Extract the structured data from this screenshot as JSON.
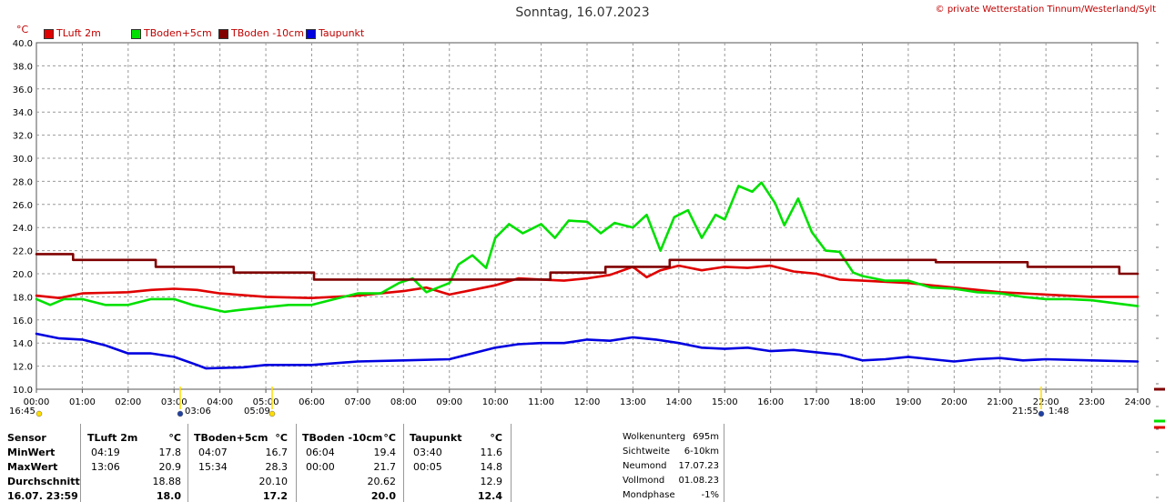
{
  "header": {
    "title": "Sonntag, 16.07.2023",
    "credit": "© private Wetterstation Tinnum/Westerland/Sylt",
    "unit": "°C"
  },
  "chart_data": {
    "type": "line",
    "ylim": [
      10.0,
      40.0
    ],
    "y_ticks": [
      "10.0",
      "12.0",
      "14.0",
      "16.0",
      "18.0",
      "20.0",
      "22.0",
      "24.0",
      "26.0",
      "28.0",
      "30.0",
      "32.0",
      "34.0",
      "36.0",
      "38.0",
      "40.0"
    ],
    "xlim": [
      0,
      24
    ],
    "x_ticks": [
      "00:00",
      "01:00",
      "02:00",
      "03:00",
      "04:00",
      "05:00",
      "06:00",
      "07:00",
      "08:00",
      "09:00",
      "10:00",
      "11:00",
      "12:00",
      "13:00",
      "14:00",
      "15:00",
      "16:00",
      "17:00",
      "18:00",
      "19:00",
      "20:00",
      "21:00",
      "22:00",
      "23:00",
      "24:00"
    ],
    "grid": true,
    "legend_position": "top-left",
    "series": [
      {
        "name": "TLuft 2m",
        "color": "#e00000",
        "x": [
          0,
          0.5,
          1,
          2,
          2.5,
          3,
          3.5,
          4,
          5,
          6,
          7,
          8,
          8.5,
          9,
          9.5,
          10,
          10.5,
          11,
          11.5,
          12,
          12.5,
          13,
          13.3,
          13.6,
          14,
          14.5,
          15,
          15.5,
          16,
          16.5,
          17,
          17.5,
          18,
          19,
          20,
          21,
          22,
          23,
          24
        ],
        "y": [
          18.1,
          17.9,
          18.3,
          18.4,
          18.6,
          18.7,
          18.6,
          18.3,
          18.0,
          17.9,
          18.1,
          18.5,
          18.8,
          18.2,
          18.6,
          19.0,
          19.6,
          19.5,
          19.4,
          19.6,
          19.9,
          20.6,
          19.7,
          20.3,
          20.7,
          20.3,
          20.6,
          20.5,
          20.7,
          20.2,
          20.0,
          19.5,
          19.4,
          19.2,
          18.8,
          18.4,
          18.2,
          18.0,
          18.0
        ]
      },
      {
        "name": "TBoden+5cm",
        "color": "#00e000",
        "x": [
          0,
          0.3,
          0.6,
          1,
          1.5,
          2,
          2.5,
          3,
          3.4,
          4.1,
          4.5,
          5,
          5.5,
          6,
          6.5,
          7,
          7.5,
          7.9,
          8.2,
          8.5,
          9,
          9.2,
          9.5,
          9.8,
          10,
          10.3,
          10.6,
          11,
          11.3,
          11.6,
          12,
          12.3,
          12.6,
          13,
          13.3,
          13.6,
          13.9,
          14.2,
          14.5,
          14.8,
          15,
          15.3,
          15.6,
          15.8,
          16.1,
          16.3,
          16.6,
          16.9,
          17.2,
          17.5,
          17.8,
          18,
          18.5,
          19,
          19.5,
          20,
          20.5,
          21,
          21.5,
          22,
          22.5,
          23,
          24
        ],
        "y": [
          17.8,
          17.3,
          17.8,
          17.8,
          17.3,
          17.3,
          17.8,
          17.8,
          17.3,
          16.7,
          16.9,
          17.1,
          17.3,
          17.3,
          17.8,
          18.3,
          18.3,
          19.2,
          19.6,
          18.4,
          19.2,
          20.8,
          21.6,
          20.5,
          23.1,
          24.3,
          23.5,
          24.3,
          23.1,
          24.6,
          24.5,
          23.5,
          24.4,
          24.0,
          25.1,
          22.0,
          24.9,
          25.5,
          23.1,
          25.1,
          24.7,
          27.6,
          27.1,
          27.9,
          26.1,
          24.2,
          26.5,
          23.6,
          22.0,
          21.9,
          20.1,
          19.8,
          19.4,
          19.4,
          18.8,
          18.7,
          18.4,
          18.3,
          18.0,
          17.8,
          17.8,
          17.7,
          17.2
        ]
      },
      {
        "name": "TBoden -10cm",
        "color": "#800000",
        "x": [
          0,
          0.8,
          0.8,
          2.6,
          2.6,
          4.3,
          4.3,
          6.05,
          6.05,
          11.2,
          11.2,
          12.4,
          12.4,
          13.8,
          13.8,
          19.6,
          19.6,
          21.6,
          21.6,
          23.6,
          23.6,
          24
        ],
        "y": [
          21.7,
          21.7,
          21.2,
          21.2,
          20.6,
          20.6,
          20.1,
          20.1,
          19.5,
          19.5,
          20.1,
          20.1,
          20.6,
          20.6,
          21.2,
          21.2,
          21.0,
          21.0,
          20.6,
          20.6,
          20.0,
          20.0
        ]
      },
      {
        "name": "Taupunkt",
        "color": "#0000e0",
        "x": [
          0,
          0.5,
          1,
          1.5,
          2,
          2.5,
          3,
          3.5,
          3.7,
          4.5,
          5,
          6,
          7,
          8,
          9,
          9.5,
          10,
          10.5,
          11,
          11.5,
          12,
          12.5,
          13,
          13.5,
          14,
          14.5,
          15,
          15.5,
          16,
          16.5,
          17,
          17.5,
          18,
          18.5,
          19,
          19.5,
          20,
          20.5,
          21,
          21.5,
          22,
          23,
          24
        ],
        "y": [
          14.8,
          14.4,
          14.3,
          13.8,
          13.1,
          13.1,
          12.8,
          12.1,
          11.8,
          11.9,
          12.1,
          12.1,
          12.4,
          12.5,
          12.6,
          13.1,
          13.6,
          13.9,
          14.0,
          14.0,
          14.3,
          14.2,
          14.5,
          14.3,
          14.0,
          13.6,
          13.5,
          13.6,
          13.3,
          13.4,
          13.2,
          13.0,
          12.5,
          12.6,
          12.8,
          12.6,
          12.4,
          12.6,
          12.7,
          12.5,
          12.6,
          12.5,
          12.4
        ]
      }
    ]
  },
  "astro_markers": {
    "moonset": "16:45",
    "sunrise": "03:06",
    "moonrise": "05:09",
    "sunset": "21:55",
    "moon_duration": "1:48"
  },
  "stats": {
    "headers": [
      "Sensor",
      "TLuft 2m",
      "°C",
      "TBoden+5cm",
      "°C",
      "TBoden -10cm",
      "°C",
      "Taupunkt",
      "°C"
    ],
    "rows": [
      {
        "label": "MinWert",
        "c1": [
          "04:19",
          "17.8"
        ],
        "c2": [
          "04:07",
          "16.7"
        ],
        "c3": [
          "06:04",
          "19.4"
        ],
        "c4": [
          "03:40",
          "11.6"
        ]
      },
      {
        "label": "MaxWert",
        "c1": [
          "13:06",
          "20.9"
        ],
        "c2": [
          "15:34",
          "28.3"
        ],
        "c3": [
          "00:00",
          "21.7"
        ],
        "c4": [
          "00:05",
          "14.8"
        ]
      },
      {
        "label": "Durchschnitt",
        "c1": [
          "",
          "18.88"
        ],
        "c2": [
          "",
          "20.10"
        ],
        "c3": [
          "",
          "20.62"
        ],
        "c4": [
          "",
          "12.9"
        ]
      },
      {
        "label": "16.07. 23:59",
        "c1": [
          "",
          "18.0"
        ],
        "c2": [
          "",
          "17.2"
        ],
        "c3": [
          "",
          "20.0"
        ],
        "c4": [
          "",
          "12.4"
        ]
      }
    ]
  },
  "weather_info": [
    {
      "label": "Wolkenunterg",
      "value": "695m"
    },
    {
      "label": "Sichtweite",
      "value": "6-10km"
    },
    {
      "label": "Neumond",
      "value": "17.07.23"
    },
    {
      "label": "Vollmond",
      "value": "01.08.23"
    },
    {
      "label": "Mondphase",
      "value": "-1%"
    }
  ]
}
